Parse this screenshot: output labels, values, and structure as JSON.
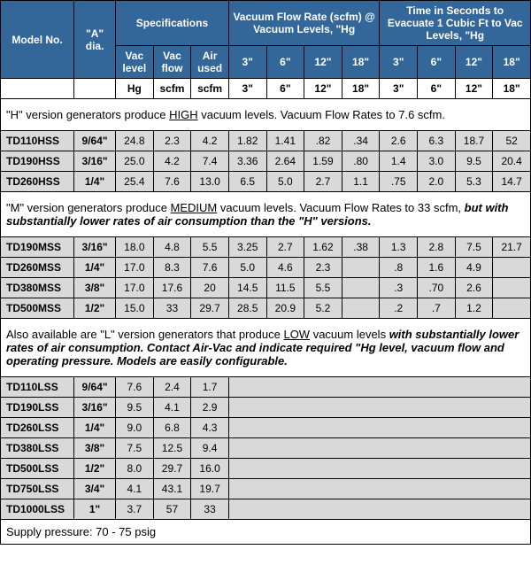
{
  "header": {
    "model": "Model No.",
    "dia": "\"A\" dia.",
    "spec_group": "Specifications",
    "spec_vac_level": "Vac level",
    "spec_vac_flow": "Vac flow",
    "spec_air_used": "Air used",
    "vfr_group": "Vacuum Flow Rate (scfm) @ Vacuum Levels, \"Hg",
    "evac_group": "Time in Seconds to Evacuate 1 Cubic Ft to Vac Levels, \"Hg",
    "col_3": "3\"",
    "col_6": "6\"",
    "col_12": "12\"",
    "col_18": "18\""
  },
  "units": {
    "hg": "Hg",
    "scfm1": "scfm",
    "scfm2": "scfm"
  },
  "notes": {
    "h_pre": "\"H\" version generators produce ",
    "h_u": "HIGH",
    "h_post": " vacuum levels. Vacuum Flow Rates to 7.6 scfm.",
    "m_pre": "\"M\" version generators produce ",
    "m_u": "MEDIUM",
    "m_post": " vacuum levels. Vacuum Flow Rates to 33 scfm, ",
    "m_bi": "but with substantially lower rates of air consumption than the \"H\" versions.",
    "l_pre": "Also available are \"L\" version generators that produce ",
    "l_u": "LOW",
    "l_post": " vacuum levels ",
    "l_bi": "with substantially lower rates of air consumption. Contact Air-Vac and indicate required \"Hg level, vacuum flow and operating pressure. Models are easily configurable."
  },
  "rows_h": [
    {
      "model": "TD110HSS",
      "dia": "9/64\"",
      "vl": "24.8",
      "vf": "2.3",
      "au": "4.2",
      "f3": "1.82",
      "f6": "1.41",
      "f12": ".82",
      "f18": ".34",
      "e3": "2.6",
      "e6": "6.3",
      "e12": "18.7",
      "e18": "52"
    },
    {
      "model": "TD190HSS",
      "dia": "3/16\"",
      "vl": "25.0",
      "vf": "4.2",
      "au": "7.4",
      "f3": "3.36",
      "f6": "2.64",
      "f12": "1.59",
      "f18": ".80",
      "e3": "1.4",
      "e6": "3.0",
      "e12": "9.5",
      "e18": "20.4"
    },
    {
      "model": "TD260HSS",
      "dia": "1/4\"",
      "vl": "25.4",
      "vf": "7.6",
      "au": "13.0",
      "f3": "6.5",
      "f6": "5.0",
      "f12": "2.7",
      "f18": "1.1",
      "e3": ".75",
      "e6": "2.0",
      "e12": "5.3",
      "e18": "14.7"
    }
  ],
  "rows_m": [
    {
      "model": "TD190MSS",
      "dia": "3/16\"",
      "vl": "18.0",
      "vf": "4.8",
      "au": "5.5",
      "f3": "3.25",
      "f6": "2.7",
      "f12": "1.62",
      "f18": ".38",
      "e3": "1.3",
      "e6": "2.8",
      "e12": "7.5",
      "e18": "21.7"
    },
    {
      "model": "TD260MSS",
      "dia": "1/4\"",
      "vl": "17.0",
      "vf": "8.3",
      "au": "7.6",
      "f3": "5.0",
      "f6": "4.6",
      "f12": "2.3",
      "f18": "",
      "e3": ".8",
      "e6": "1.6",
      "e12": "4.9",
      "e18": ""
    },
    {
      "model": "TD380MSS",
      "dia": "3/8\"",
      "vl": "17.0",
      "vf": "17.6",
      "au": "20",
      "f3": "14.5",
      "f6": "11.5",
      "f12": "5.5",
      "f18": "",
      "e3": ".3",
      "e6": ".70",
      "e12": "2.6",
      "e18": ""
    },
    {
      "model": "TD500MSS",
      "dia": "1/2\"",
      "vl": "15.0",
      "vf": "33",
      "au": "29.7",
      "f3": "28.5",
      "f6": "20.9",
      "f12": "5.2",
      "f18": "",
      "e3": ".2",
      "e6": ".7",
      "e12": "1.2",
      "e18": ""
    }
  ],
  "rows_l": [
    {
      "model": "TD110LSS",
      "dia": "9/64\"",
      "vl": "7.6",
      "vf": "2.4",
      "au": "1.7"
    },
    {
      "model": "TD190LSS",
      "dia": "3/16\"",
      "vl": "9.5",
      "vf": "4.1",
      "au": "2.9"
    },
    {
      "model": "TD260LSS",
      "dia": "1/4\"",
      "vl": "9.0",
      "vf": "6.8",
      "au": "4.3"
    },
    {
      "model": "TD380LSS",
      "dia": "3/8\"",
      "vl": "7.5",
      "vf": "12.5",
      "au": "9.4"
    },
    {
      "model": "TD500LSS",
      "dia": "1/2\"",
      "vl": "8.0",
      "vf": "29.7",
      "au": "16.0"
    },
    {
      "model": "TD750LSS",
      "dia": "3/4\"",
      "vl": "4.1",
      "vf": "43.1",
      "au": "19.7"
    },
    {
      "model": "TD1000LSS",
      "dia": "1\"",
      "vl": "3.7",
      "vf": "57",
      "au": "33"
    }
  ],
  "footer": "Supply pressure: 70 - 75 psig"
}
